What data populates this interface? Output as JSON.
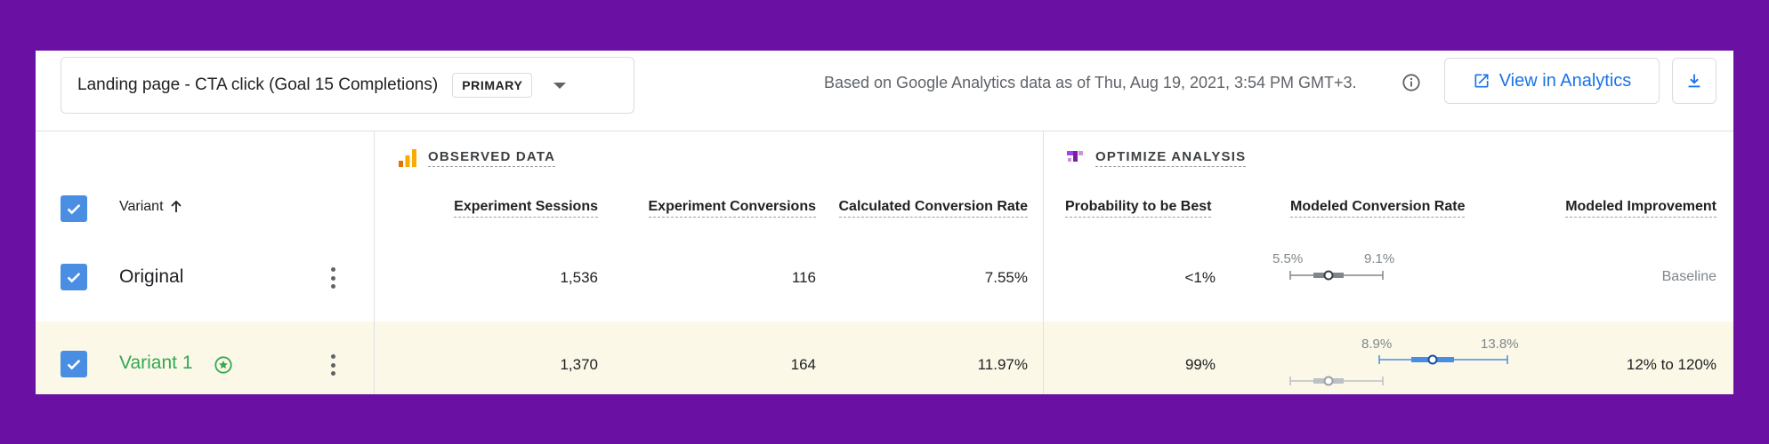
{
  "goal": {
    "label": "Landing page - CTA click (Goal 15 Completions)",
    "badge": "PRIMARY"
  },
  "header": {
    "note": "Based on Google Analytics data as of Thu, Aug 19, 2021, 3:54 PM GMT+3.",
    "view_button": "View in Analytics"
  },
  "sections": {
    "observed": "OBSERVED DATA",
    "optimize": "OPTIMIZE ANALYSIS"
  },
  "columns": {
    "variant": "Variant",
    "sessions": "Experiment Sessions",
    "conversions": "Experiment Conversions",
    "calc_rate": "Calculated Conversion Rate",
    "prob_best": "Probability to be Best",
    "modeled_rate": "Modeled Conversion Rate",
    "modeled_improvement": "Modeled Improvement"
  },
  "rows": [
    {
      "name": "Original",
      "sessions": "1,536",
      "conversions": "116",
      "calc_rate": "7.55%",
      "prob_best": "<1%",
      "ci_low": "5.5%",
      "ci_high": "9.1%",
      "improvement": "Baseline"
    },
    {
      "name": "Variant 1",
      "sessions": "1,370",
      "conversions": "164",
      "calc_rate": "11.97%",
      "prob_best": "99%",
      "ci_low": "8.9%",
      "ci_high": "13.8%",
      "improvement": "12% to 120%"
    }
  ],
  "colors": {
    "background": "#6a11a4",
    "accent_blue": "#1a73e8",
    "checkbox": "#4a8ee3",
    "variant_green": "#34a853",
    "row_highlight": "#fbf8e7"
  }
}
